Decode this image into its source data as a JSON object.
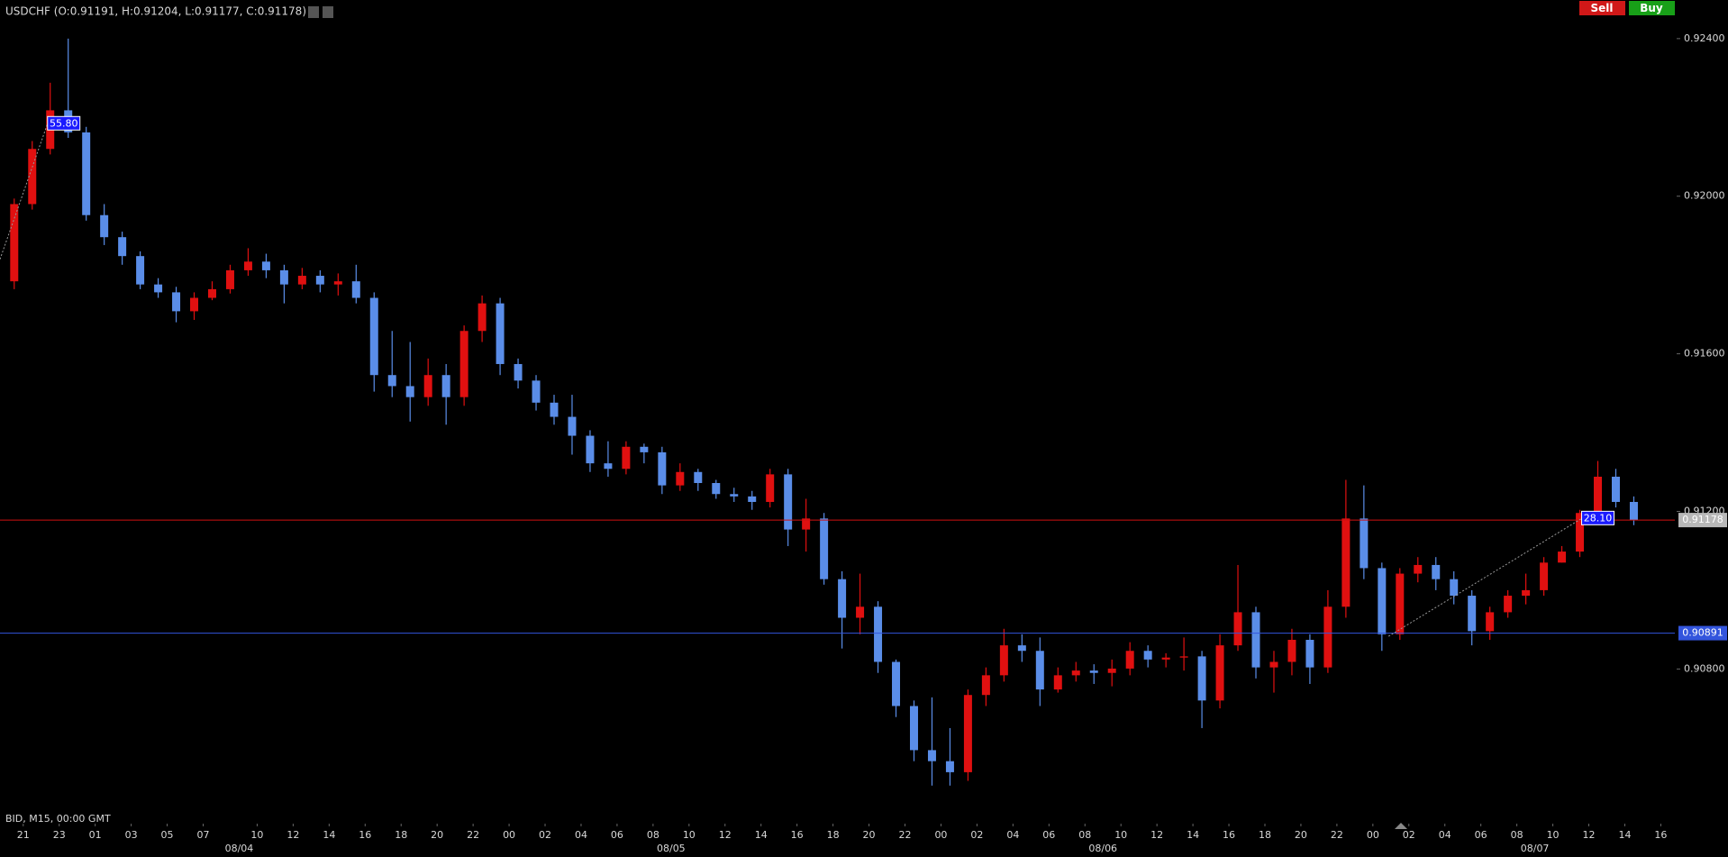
{
  "chart_data": {
    "type": "candlestick",
    "title": "USDCHF (O:0.91191, H:0.91204, L:0.91177, C:0.91178)",
    "buttons": [
      "Sell",
      "Buy"
    ],
    "footer": "BID, M15, 00:00 GMT",
    "up_color": "#e01010",
    "down_color": "#5a8de8",
    "ylim": [
      0.90428,
      0.92498
    ],
    "yticks": [
      {
        "value": 0.924,
        "label": "0.92400"
      },
      {
        "value": 0.92,
        "label": "0.92000"
      },
      {
        "value": 0.916,
        "label": "0.91600"
      },
      {
        "value": 0.912,
        "label": "0.91200"
      },
      {
        "value": 0.908,
        "label": "0.90800"
      }
    ],
    "xlim": [
      -1.29,
      91.78
    ],
    "xticks": [
      {
        "value": 0,
        "label": "21"
      },
      {
        "value": 2,
        "label": "23"
      },
      {
        "value": 4,
        "label": "01"
      },
      {
        "value": 6,
        "label": "03"
      },
      {
        "value": 8,
        "label": "05"
      },
      {
        "value": 10,
        "label": "07"
      },
      {
        "value": 13,
        "label": "10"
      },
      {
        "value": 15,
        "label": "12"
      },
      {
        "value": 17,
        "label": "14"
      },
      {
        "value": 19,
        "label": "16"
      },
      {
        "value": 21,
        "label": "18"
      },
      {
        "value": 23,
        "label": "20"
      },
      {
        "value": 25,
        "label": "22"
      },
      {
        "value": 27,
        "label": "00"
      },
      {
        "value": 29,
        "label": "02"
      },
      {
        "value": 31,
        "label": "04"
      },
      {
        "value": 33,
        "label": "06"
      },
      {
        "value": 35,
        "label": "08"
      },
      {
        "value": 37,
        "label": "10"
      },
      {
        "value": 39,
        "label": "12"
      },
      {
        "value": 41,
        "label": "14"
      },
      {
        "value": 43,
        "label": "16"
      },
      {
        "value": 45,
        "label": "18"
      },
      {
        "value": 47,
        "label": "20"
      },
      {
        "value": 49,
        "label": "22"
      },
      {
        "value": 51,
        "label": "00"
      },
      {
        "value": 53,
        "label": "02"
      },
      {
        "value": 55,
        "label": "04"
      },
      {
        "value": 57,
        "label": "06"
      },
      {
        "value": 59,
        "label": "08"
      },
      {
        "value": 61,
        "label": "10"
      },
      {
        "value": 63,
        "label": "12"
      },
      {
        "value": 65,
        "label": "14"
      },
      {
        "value": 67,
        "label": "16"
      },
      {
        "value": 69,
        "label": "18"
      },
      {
        "value": 71,
        "label": "20"
      },
      {
        "value": 73,
        "label": "22"
      },
      {
        "value": 75,
        "label": "00"
      },
      {
        "value": 77,
        "label": "02"
      },
      {
        "value": 79,
        "label": "04"
      },
      {
        "value": 81,
        "label": "06"
      },
      {
        "value": 83,
        "label": "08"
      },
      {
        "value": 85,
        "label": "10"
      },
      {
        "value": 87,
        "label": "12"
      },
      {
        "value": 89,
        "label": "14"
      },
      {
        "value": 91,
        "label": "16"
      }
    ],
    "xdates": [
      {
        "value": 12,
        "label": "08/04"
      },
      {
        "value": 36,
        "label": "08/05"
      },
      {
        "value": 60,
        "label": "08/06"
      },
      {
        "value": 84,
        "label": "08/07"
      }
    ],
    "hlines": [
      {
        "value": 0.91178,
        "color": "#d01010",
        "label_bg": "#b8b8b8"
      },
      {
        "value": 0.90891,
        "color": "#3355dd",
        "label_bg": "#3355dd"
      }
    ],
    "measures": [
      {
        "label": "55.80",
        "from": [
          -1.29,
          0.9184
        ],
        "to": [
          1.35,
          0.92184
        ]
      },
      {
        "label": "28.10",
        "from": [
          75.87,
          0.90883
        ],
        "to": [
          86.6,
          0.91182
        ]
      }
    ],
    "candles": [
      [
        0.91784,
        0.91994,
        0.91764,
        0.9198
      ],
      [
        0.9198,
        0.9214,
        0.91966,
        0.9212
      ],
      [
        0.9212,
        0.92288,
        0.92106,
        0.92218
      ],
      [
        0.92218,
        0.924,
        0.92148,
        0.92162
      ],
      [
        0.92162,
        0.92176,
        0.91938,
        0.91952
      ],
      [
        0.91952,
        0.9198,
        0.91876,
        0.91896
      ],
      [
        0.91896,
        0.9191,
        0.91826,
        0.91848
      ],
      [
        0.91848,
        0.9186,
        0.91764,
        0.91776
      ],
      [
        0.91776,
        0.91792,
        0.91742,
        0.91756
      ],
      [
        0.91756,
        0.9177,
        0.9168,
        0.91708
      ],
      [
        0.91708,
        0.91756,
        0.91686,
        0.91742
      ],
      [
        0.91742,
        0.91784,
        0.91736,
        0.91764
      ],
      [
        0.91764,
        0.91826,
        0.91753,
        0.91812
      ],
      [
        0.91812,
        0.91868,
        0.91798,
        0.91834
      ],
      [
        0.91834,
        0.91854,
        0.91792,
        0.91812
      ],
      [
        0.91812,
        0.91826,
        0.91728,
        0.91776
      ],
      [
        0.91776,
        0.91818,
        0.91764,
        0.91798
      ],
      [
        0.91798,
        0.91812,
        0.91756,
        0.91776
      ],
      [
        0.91776,
        0.91804,
        0.91748,
        0.91784
      ],
      [
        0.91784,
        0.91826,
        0.91728,
        0.91742
      ],
      [
        0.91742,
        0.91756,
        0.91504,
        0.91546
      ],
      [
        0.91546,
        0.91658,
        0.9149,
        0.91518
      ],
      [
        0.91518,
        0.9163,
        0.91428,
        0.9149
      ],
      [
        0.9149,
        0.91588,
        0.91468,
        0.91546
      ],
      [
        0.91546,
        0.91574,
        0.9142,
        0.9149
      ],
      [
        0.9149,
        0.91672,
        0.91468,
        0.91658
      ],
      [
        0.91658,
        0.91748,
        0.9163,
        0.91728
      ],
      [
        0.91728,
        0.91742,
        0.91546,
        0.91574
      ],
      [
        0.91574,
        0.91588,
        0.91512,
        0.91532
      ],
      [
        0.91532,
        0.91546,
        0.91456,
        0.91476
      ],
      [
        0.91476,
        0.91496,
        0.9142,
        0.9144
      ],
      [
        0.9144,
        0.91496,
        0.91344,
        0.91392
      ],
      [
        0.91392,
        0.91406,
        0.913,
        0.91322
      ],
      [
        0.91322,
        0.91378,
        0.91288,
        0.91308
      ],
      [
        0.91308,
        0.91378,
        0.91294,
        0.91364
      ],
      [
        0.91364,
        0.91372,
        0.91322,
        0.9135
      ],
      [
        0.9135,
        0.91364,
        0.91244,
        0.91266
      ],
      [
        0.91266,
        0.91322,
        0.91252,
        0.913
      ],
      [
        0.913,
        0.91308,
        0.91252,
        0.91272
      ],
      [
        0.91272,
        0.9128,
        0.91232,
        0.91244
      ],
      [
        0.91244,
        0.9126,
        0.91224,
        0.91238
      ],
      [
        0.91238,
        0.91252,
        0.91204,
        0.91224
      ],
      [
        0.91224,
        0.91308,
        0.9121,
        0.91294
      ],
      [
        0.91294,
        0.91308,
        0.91112,
        0.91154
      ],
      [
        0.91154,
        0.91232,
        0.91098,
        0.91182
      ],
      [
        0.91182,
        0.91196,
        0.91014,
        0.91028
      ],
      [
        0.91028,
        0.91048,
        0.90852,
        0.9093
      ],
      [
        0.9093,
        0.91042,
        0.90888,
        0.90958
      ],
      [
        0.90958,
        0.90972,
        0.9079,
        0.90818
      ],
      [
        0.90818,
        0.90824,
        0.90678,
        0.90706
      ],
      [
        0.90706,
        0.9072,
        0.90566,
        0.90594
      ],
      [
        0.90594,
        0.90728,
        0.90504,
        0.90566
      ],
      [
        0.90566,
        0.9065,
        0.90504,
        0.90538
      ],
      [
        0.90538,
        0.90748,
        0.90516,
        0.90734
      ],
      [
        0.90734,
        0.90804,
        0.90706,
        0.90784
      ],
      [
        0.90784,
        0.90902,
        0.90768,
        0.9086
      ],
      [
        0.9086,
        0.90888,
        0.90818,
        0.90846
      ],
      [
        0.90846,
        0.9088,
        0.90706,
        0.90748
      ],
      [
        0.90748,
        0.90804,
        0.9074,
        0.90784
      ],
      [
        0.90784,
        0.90818,
        0.90768,
        0.90796
      ],
      [
        0.90796,
        0.90812,
        0.90762,
        0.9079
      ],
      [
        0.9079,
        0.90824,
        0.90756,
        0.90801
      ],
      [
        0.90801,
        0.90868,
        0.90784,
        0.90846
      ],
      [
        0.90846,
        0.9086,
        0.90804,
        0.90824
      ],
      [
        0.90824,
        0.9084,
        0.90804,
        0.90829
      ],
      [
        0.90829,
        0.9088,
        0.90796,
        0.90832
      ],
      [
        0.90832,
        0.90846,
        0.9065,
        0.9072
      ],
      [
        0.9072,
        0.90888,
        0.907,
        0.9086
      ],
      [
        0.9086,
        0.91064,
        0.90846,
        0.90944
      ],
      [
        0.90944,
        0.90958,
        0.90776,
        0.90804
      ],
      [
        0.90804,
        0.90846,
        0.9074,
        0.90818
      ],
      [
        0.90818,
        0.90902,
        0.90784,
        0.90874
      ],
      [
        0.90874,
        0.90888,
        0.90762,
        0.90804
      ],
      [
        0.90804,
        0.91,
        0.9079,
        0.90958
      ],
      [
        0.90958,
        0.9128,
        0.9093,
        0.91182
      ],
      [
        0.91182,
        0.91266,
        0.91028,
        0.91056
      ],
      [
        0.91056,
        0.9107,
        0.90846,
        0.90888
      ],
      [
        0.90888,
        0.91056,
        0.90874,
        0.91042
      ],
      [
        0.91042,
        0.91084,
        0.9102,
        0.91064
      ],
      [
        0.91064,
        0.91084,
        0.91,
        0.91028
      ],
      [
        0.91028,
        0.91048,
        0.90964,
        0.90986
      ],
      [
        0.90986,
        0.91,
        0.9086,
        0.90896
      ],
      [
        0.90896,
        0.90958,
        0.90874,
        0.90944
      ],
      [
        0.90944,
        0.91,
        0.9093,
        0.90986
      ],
      [
        0.90986,
        0.91042,
        0.90964,
        0.91
      ],
      [
        0.91,
        0.91084,
        0.90986,
        0.9107
      ],
      [
        0.9107,
        0.91112,
        0.9107,
        0.91098
      ],
      [
        0.91098,
        0.91204,
        0.91084,
        0.91196
      ],
      [
        0.91196,
        0.91328,
        0.91182,
        0.91288
      ],
      [
        0.91288,
        0.91308,
        0.9121,
        0.91224
      ],
      [
        0.91224,
        0.91238,
        0.91165,
        0.91178
      ]
    ]
  }
}
